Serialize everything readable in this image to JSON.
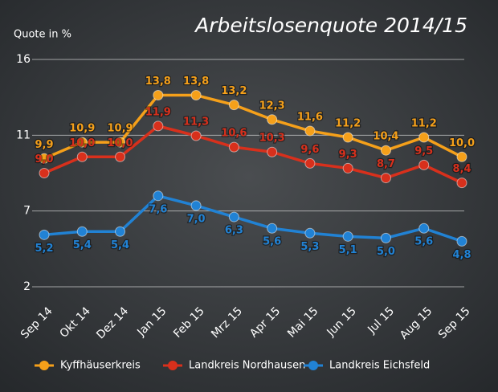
{
  "chart_data": {
    "type": "line",
    "title": "Arbeitslosenquote 2014/15",
    "y_axis_label": "Quote in %",
    "categories": [
      "Sep 14",
      "Okt 14",
      "Dez 14",
      "Jan 15",
      "Feb 15",
      "Mrz 15",
      "Apr 15",
      "Mai 15",
      "Jun 15",
      "Jul 15",
      "Aug 15",
      "Sep 15"
    ],
    "series": [
      {
        "name": "Kyffhäuserkreis",
        "color": "#f5a01a",
        "values": [
          9.9,
          10.9,
          10.9,
          13.8,
          13.8,
          13.2,
          12.3,
          11.6,
          11.2,
          10.4,
          11.2,
          10.0
        ],
        "value_labels": [
          "9,9",
          "10,9",
          "10,9",
          "13,8",
          "13,8",
          "13,2",
          "12,3",
          "11,6",
          "11,2",
          "10,4",
          "11,2",
          "10,0"
        ]
      },
      {
        "name": "Landkreis Nordhausen",
        "color": "#d8301c",
        "values": [
          9.0,
          10.0,
          10.0,
          11.9,
          11.3,
          10.6,
          10.3,
          9.6,
          9.3,
          8.7,
          9.5,
          8.4
        ],
        "value_labels": [
          "9,0",
          "10,0",
          "10,0",
          "11,9",
          "11,3",
          "10,6",
          "10,3",
          "9,6",
          "9,3",
          "8,7",
          "9,5",
          "8,4"
        ]
      },
      {
        "name": "Landkreis Eichsfeld",
        "color": "#2182d4",
        "values": [
          5.2,
          5.4,
          5.4,
          7.6,
          7.0,
          6.3,
          5.6,
          5.3,
          5.1,
          5.0,
          5.6,
          4.8
        ],
        "value_labels": [
          "5,2",
          "5,4",
          "5,4",
          "7,6",
          "7,0",
          "6,3",
          "5,6",
          "5,3",
          "5,1",
          "5,0",
          "5,6",
          "4,8"
        ]
      }
    ],
    "ylim": [
      2,
      16
    ],
    "yticks": [
      2,
      {
        "value": 6.667,
        "label": "7"
      },
      {
        "value": 11.333,
        "label": "11"
      },
      16
    ],
    "grid": true,
    "legend": "bottom"
  }
}
